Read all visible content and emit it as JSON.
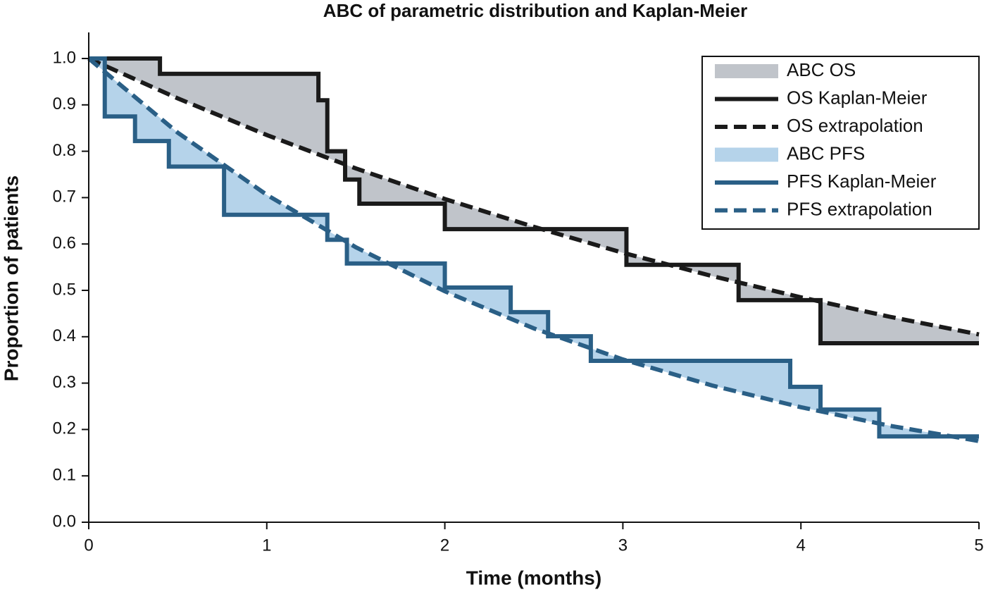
{
  "chart_data": {
    "type": "line",
    "title": "ABC of parametric distribution and Kaplan-Meier",
    "x_label": "Time (months)",
    "y_label": "Proportion of patients",
    "xlim": [
      0,
      5
    ],
    "ylim": [
      0,
      1
    ],
    "xticks": [
      0,
      1,
      2,
      3,
      4,
      5
    ],
    "yticks": [
      {
        "value": 0,
        "label": "0.0"
      },
      0.1,
      0.2,
      0.3,
      0.4,
      0.5,
      0.6,
      0.7,
      0.8,
      0.9,
      {
        "value": 1,
        "label": "1.0"
      }
    ],
    "legend": "top-right",
    "fills": [
      {
        "name": "ABC OS",
        "color": "#c0c4ca"
      },
      {
        "name": "ABC PFS",
        "color": "#b5d3ea"
      }
    ],
    "series": [
      {
        "name": "OS Kaplan-Meier",
        "color": "#1a1a1a",
        "style": "solid",
        "x": [
          0,
          0.4,
          0.4,
          1.29,
          1.29,
          1.34,
          1.34,
          1.44,
          1.44,
          1.52,
          1.52,
          2.0,
          2.0,
          3.02,
          3.02,
          3.65,
          3.65,
          4.11,
          4.11,
          5
        ],
        "values": [
          1,
          1,
          0.967,
          0.967,
          0.91,
          0.91,
          0.8,
          0.8,
          0.739,
          0.739,
          0.687,
          0.687,
          0.632,
          0.632,
          0.555,
          0.555,
          0.479,
          0.479,
          0.386,
          0.386
        ]
      },
      {
        "name": "OS extrapolation",
        "color": "#1a1a1a",
        "style": "dashed",
        "x": [
          0,
          0.5,
          1,
          1.5,
          2,
          2.5,
          3,
          3.5,
          4,
          4.5,
          5
        ],
        "values": [
          1,
          0.914,
          0.835,
          0.763,
          0.697,
          0.637,
          0.581,
          0.531,
          0.485,
          0.443,
          0.405
        ]
      },
      {
        "name": "PFS Kaplan-Meier",
        "color": "#2a5f86",
        "style": "solid",
        "x": [
          0,
          0.09,
          0.09,
          0.26,
          0.26,
          0.45,
          0.45,
          0.76,
          0.76,
          1.34,
          1.34,
          1.45,
          1.45,
          2.0,
          2.0,
          2.37,
          2.37,
          2.58,
          2.58,
          2.82,
          2.82,
          3.94,
          3.94,
          4.11,
          4.11,
          4.44,
          4.44,
          5
        ],
        "values": [
          1,
          1,
          0.875,
          0.875,
          0.822,
          0.822,
          0.767,
          0.767,
          0.663,
          0.663,
          0.609,
          0.609,
          0.558,
          0.558,
          0.506,
          0.506,
          0.453,
          0.453,
          0.401,
          0.401,
          0.348,
          0.348,
          0.292,
          0.292,
          0.243,
          0.243,
          0.185,
          0.185
        ]
      },
      {
        "name": "PFS extrapolation",
        "color": "#2a5f86",
        "style": "dashed",
        "x": [
          0,
          0.5,
          1,
          1.5,
          2,
          2.5,
          3,
          3.5,
          4,
          4.5,
          5
        ],
        "values": [
          1,
          0.84,
          0.706,
          0.593,
          0.498,
          0.418,
          0.351,
          0.295,
          0.248,
          0.208,
          0.175
        ]
      }
    ]
  }
}
